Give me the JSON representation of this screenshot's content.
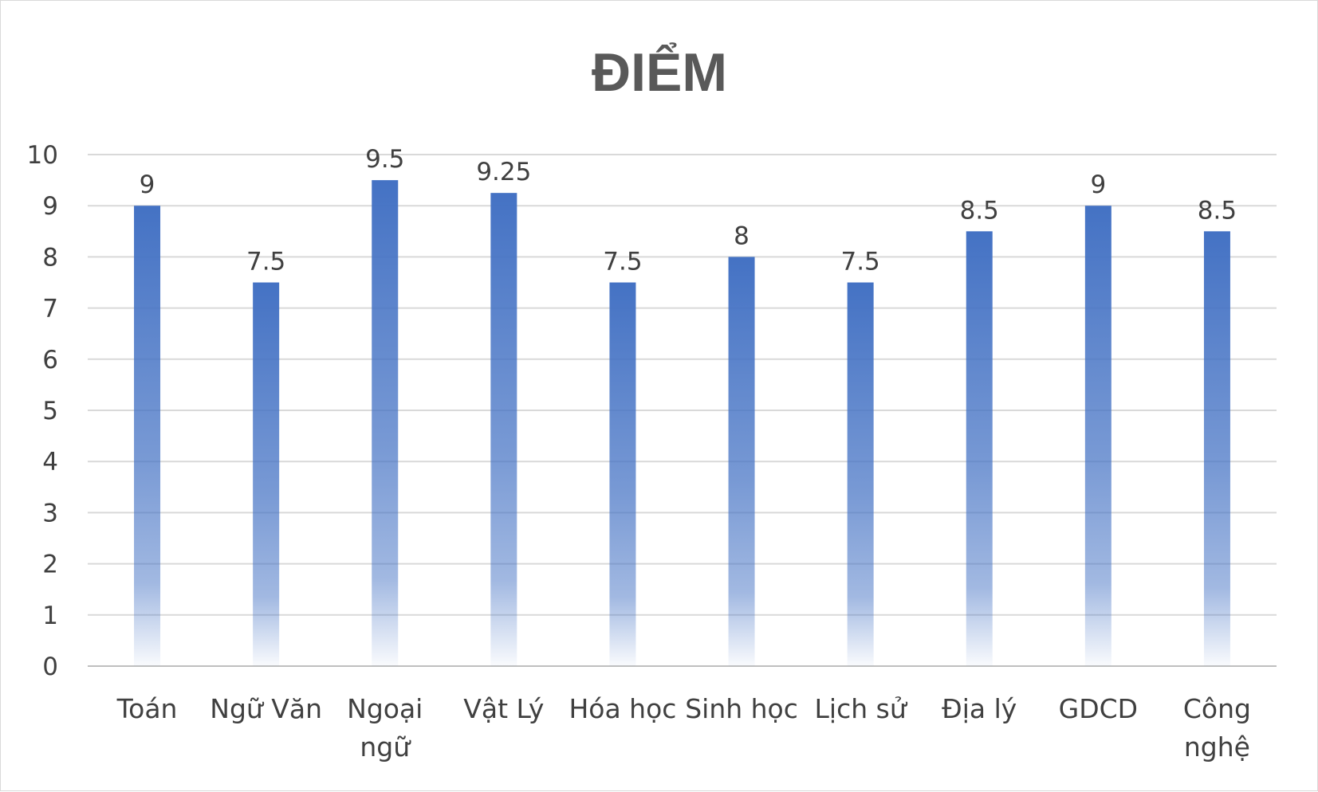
{
  "chart_data": {
    "type": "bar",
    "title": "ĐIỂM",
    "categories": [
      [
        "Toán"
      ],
      [
        "Ngữ Văn"
      ],
      [
        "Ngoại",
        "ngữ"
      ],
      [
        "Vật Lý"
      ],
      [
        "Hóa học"
      ],
      [
        "Sinh học"
      ],
      [
        "Lịch sử"
      ],
      [
        "Địa lý"
      ],
      [
        "GDCD"
      ],
      [
        "Công",
        "nghệ"
      ]
    ],
    "values": [
      9,
      7.5,
      9.5,
      9.25,
      7.5,
      8,
      7.5,
      8.5,
      9,
      8.5
    ],
    "data_labels": [
      "9",
      "7.5",
      "9.5",
      "9.25",
      "7.5",
      "8",
      "7.5",
      "8.5",
      "9",
      "8.5"
    ],
    "ylim": [
      0,
      10
    ],
    "yticks": [
      "0",
      "1",
      "2",
      "3",
      "4",
      "5",
      "6",
      "7",
      "8",
      "9",
      "10"
    ],
    "grid": true,
    "legend": "none",
    "xlabel": "",
    "ylabel": "",
    "colors": {
      "bar_top": "#4472C4",
      "bar_bottom": "#ffffff",
      "grid": "#d9d9d9",
      "axis": "#bfbfbf",
      "text": "#404040",
      "title": "#595959"
    }
  }
}
